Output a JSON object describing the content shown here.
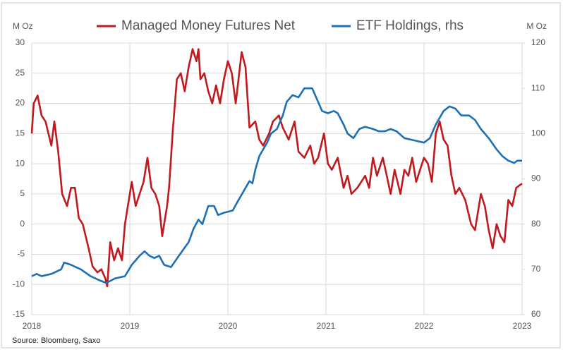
{
  "chart_data": {
    "type": "line",
    "ylabel": "M Oz",
    "y2label": "M Oz",
    "source": "Source: Bloomberg, Saxo",
    "xlim": [
      2018,
      2023
    ],
    "xticks": [
      2018,
      2019,
      2020,
      2021,
      2022,
      2023
    ],
    "ylim": [
      -15,
      30
    ],
    "yticks": [
      -15,
      -10,
      -5,
      0,
      5,
      10,
      15,
      20,
      25,
      30
    ],
    "y2lim": [
      60,
      120
    ],
    "y2ticks": [
      60,
      70,
      80,
      90,
      100,
      110,
      120
    ],
    "grid": true,
    "legend": "top",
    "series": [
      {
        "name": "Managed Money Futures Net",
        "color": "#c0191e",
        "x": [
          2018.0,
          2018.02,
          2018.06,
          2018.1,
          2018.14,
          2018.2,
          2018.23,
          2018.27,
          2018.31,
          2018.36,
          2018.4,
          2018.44,
          2018.48,
          2018.52,
          2018.58,
          2018.62,
          2018.67,
          2018.71,
          2018.75,
          2018.77,
          2018.8,
          2018.84,
          2018.88,
          2018.92,
          2018.95,
          2018.98,
          2019.02,
          2019.06,
          2019.1,
          2019.14,
          2019.18,
          2019.22,
          2019.26,
          2019.3,
          2019.33,
          2019.38,
          2019.4,
          2019.44,
          2019.48,
          2019.52,
          2019.56,
          2019.6,
          2019.64,
          2019.68,
          2019.7,
          2019.72,
          2019.76,
          2019.8,
          2019.84,
          2019.88,
          2019.92,
          2019.96,
          2020.0,
          2020.04,
          2020.08,
          2020.14,
          2020.18,
          2020.22,
          2020.28,
          2020.32,
          2020.36,
          2020.42,
          2020.46,
          2020.52,
          2020.56,
          2020.62,
          2020.68,
          2020.72,
          2020.78,
          2020.84,
          2020.88,
          2020.92,
          2020.98,
          2021.02,
          2021.06,
          2021.12,
          2021.18,
          2021.22,
          2021.26,
          2021.32,
          2021.36,
          2021.4,
          2021.44,
          2021.48,
          2021.52,
          2021.58,
          2021.62,
          2021.66,
          2021.7,
          2021.76,
          2021.8,
          2021.84,
          2021.88,
          2021.92,
          2021.96,
          2022.0,
          2022.04,
          2022.08,
          2022.12,
          2022.16,
          2022.2,
          2022.24,
          2022.28,
          2022.32,
          2022.36,
          2022.42,
          2022.48,
          2022.52,
          2022.58,
          2022.62,
          2022.66,
          2022.7,
          2022.74,
          2022.78,
          2022.82,
          2022.86,
          2022.9,
          2022.94,
          2022.98,
          2023.0
        ],
        "values": [
          15,
          20,
          21.3,
          18,
          17,
          13,
          17,
          12,
          5,
          3,
          6,
          6,
          1,
          0,
          -4,
          -7,
          -8,
          -7.5,
          -9,
          -10.3,
          -3,
          -6,
          -4,
          -6,
          0,
          3,
          7,
          3,
          5,
          7,
          11,
          6,
          5,
          3,
          -2,
          3,
          6,
          16,
          24,
          25,
          22,
          26,
          29,
          27,
          29,
          24,
          25,
          22,
          20,
          23,
          20,
          24,
          27,
          25,
          20,
          28.5,
          26,
          16,
          17,
          14,
          13,
          15,
          17,
          18,
          16,
          14,
          17,
          12,
          11,
          13,
          10,
          11,
          15,
          10,
          9,
          11,
          6,
          8,
          5,
          6,
          7,
          8,
          6,
          11,
          8,
          11,
          8,
          5,
          9,
          5,
          9,
          8,
          11,
          7,
          9,
          11,
          10,
          7,
          15,
          17,
          14,
          13,
          8,
          5,
          6,
          4,
          0,
          -1,
          5,
          3,
          -1,
          -4,
          0,
          -2,
          -3,
          4,
          3,
          6,
          6.5,
          6.7
        ]
      },
      {
        "name": "ETF Holdings, rhs",
        "color": "#1f6fb5",
        "axis": "y2",
        "x": [
          2018.0,
          2018.05,
          2018.1,
          2018.2,
          2018.3,
          2018.33,
          2018.4,
          2018.5,
          2018.6,
          2018.7,
          2018.76,
          2018.85,
          2018.95,
          2019.02,
          2019.1,
          2019.15,
          2019.2,
          2019.25,
          2019.3,
          2019.35,
          2019.42,
          2019.5,
          2019.6,
          2019.65,
          2019.7,
          2019.74,
          2019.8,
          2019.86,
          2019.9,
          2019.96,
          2020.05,
          2020.1,
          2020.18,
          2020.22,
          2020.25,
          2020.28,
          2020.32,
          2020.4,
          2020.44,
          2020.5,
          2020.56,
          2020.6,
          2020.66,
          2020.72,
          2020.78,
          2020.86,
          2020.92,
          2020.96,
          2021.02,
          2021.08,
          2021.12,
          2021.18,
          2021.22,
          2021.28,
          2021.34,
          2021.4,
          2021.48,
          2021.54,
          2021.6,
          2021.66,
          2021.72,
          2021.8,
          2021.9,
          2022.0,
          2022.06,
          2022.12,
          2022.2,
          2022.26,
          2022.32,
          2022.38,
          2022.46,
          2022.52,
          2022.58,
          2022.66,
          2022.74,
          2022.8,
          2022.86,
          2022.92,
          2022.95,
          2023.0
        ],
        "values": [
          68.5,
          69,
          68.5,
          69,
          70,
          71.5,
          71,
          70,
          68.5,
          67.5,
          67,
          68,
          68.5,
          71,
          73,
          74,
          73,
          72.5,
          73,
          71,
          70.5,
          73,
          76,
          79,
          81,
          80,
          84,
          84,
          82,
          82.5,
          83,
          85,
          88,
          89.5,
          89,
          92,
          95,
          98,
          100,
          101,
          104,
          107,
          108.5,
          108,
          110,
          110,
          107,
          105,
          104.5,
          105,
          104.5,
          102,
          100,
          99,
          101,
          101.5,
          101,
          100.5,
          100.5,
          101,
          100.5,
          99,
          98.5,
          98,
          99,
          102,
          105,
          106,
          105.5,
          104,
          104,
          103,
          101,
          99,
          96.5,
          95,
          94,
          93.5,
          94,
          94
        ]
      }
    ]
  }
}
